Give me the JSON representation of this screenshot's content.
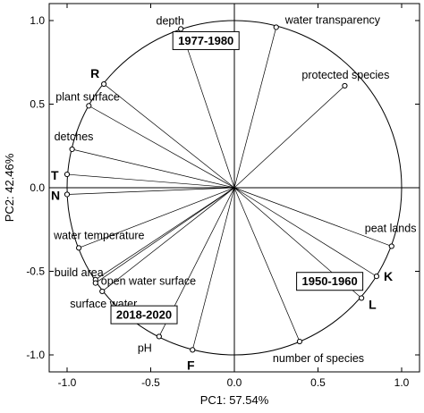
{
  "chart_data": {
    "type": "scatter",
    "xlabel": "PC1: 57.54%",
    "ylabel": "PC2: 42.46%",
    "xlim": [
      -1.1,
      1.1
    ],
    "ylim": [
      -1.1,
      1.1
    ],
    "x_ticks": [
      "-1.0",
      "-0.5",
      "0.0",
      "0.5",
      "1.0"
    ],
    "y_ticks": [
      "1.0",
      "0.5",
      "0.0",
      "-0.5",
      "-1.0"
    ],
    "unit_circle": true,
    "grid": false,
    "points": [
      {
        "label": "depth",
        "x": -0.32,
        "y": 0.95,
        "bold": false
      },
      {
        "label": "water transparency",
        "x": 0.25,
        "y": 0.96,
        "bold": false
      },
      {
        "label": "protected species",
        "x": 0.66,
        "y": 0.61,
        "bold": false
      },
      {
        "label": "R",
        "x": -0.78,
        "y": 0.62,
        "bold": true
      },
      {
        "label": "plant surface",
        "x": -0.87,
        "y": 0.49,
        "bold": false
      },
      {
        "label": "detches",
        "x": -0.97,
        "y": 0.23,
        "bold": false
      },
      {
        "label": "T",
        "x": -1.0,
        "y": 0.08,
        "bold": true
      },
      {
        "label": "N",
        "x": -1.0,
        "y": -0.04,
        "bold": true
      },
      {
        "label": "water temperature",
        "x": -0.93,
        "y": -0.36,
        "bold": false
      },
      {
        "label": "build area",
        "x": -0.83,
        "y": -0.55,
        "bold": false
      },
      {
        "label": "open water surface",
        "x": -0.83,
        "y": -0.57,
        "bold": false
      },
      {
        "label": "surface water",
        "x": -0.79,
        "y": -0.62,
        "bold": false
      },
      {
        "label": "pH",
        "x": -0.45,
        "y": -0.89,
        "bold": false
      },
      {
        "label": "F",
        "x": -0.25,
        "y": -0.97,
        "bold": true
      },
      {
        "label": "number of species",
        "x": 0.39,
        "y": -0.92,
        "bold": false
      },
      {
        "label": "peat lands",
        "x": 0.94,
        "y": -0.35,
        "bold": false
      },
      {
        "label": "K",
        "x": 0.85,
        "y": -0.53,
        "bold": true
      },
      {
        "label": "L",
        "x": 0.76,
        "y": -0.66,
        "bold": true
      }
    ],
    "groups": [
      {
        "label": "1977-1980",
        "x": -0.17,
        "y": 0.88
      },
      {
        "label": "1950-1960",
        "x": 0.57,
        "y": -0.56
      },
      {
        "label": "2018-2020",
        "x": -0.54,
        "y": -0.76
      }
    ]
  }
}
